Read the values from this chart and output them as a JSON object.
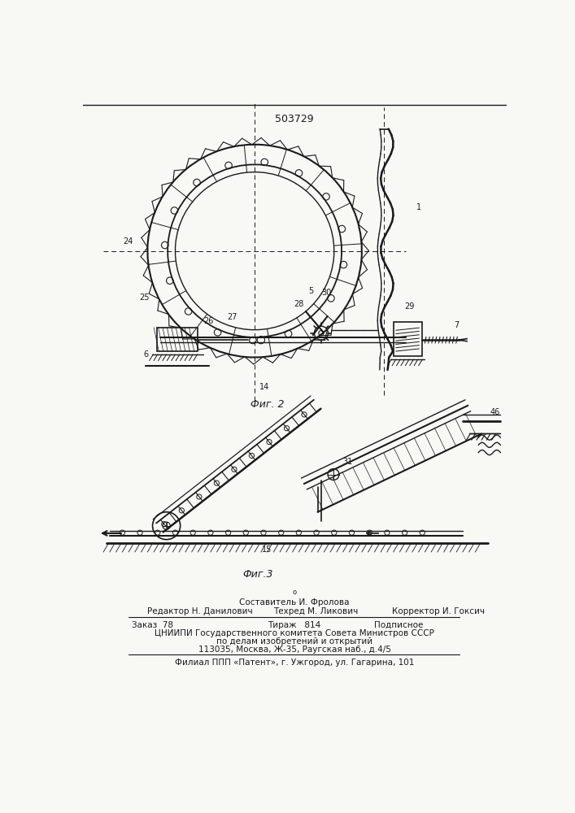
{
  "patent_number": "503729",
  "fig2_label": "Фиг. 2",
  "fig3_label": "Фиг.3",
  "bg_color": "#f8f8f5",
  "line_color": "#1a1a1a",
  "footer_line1_center": "Составитель И. Фролова",
  "footer_line2_left": "Редактор Н. Данилович",
  "footer_line2_center": "Техред М. Ликович",
  "footer_line2_right": "Корректор И. Гоксич",
  "footer_line3_left": "Заказ  78",
  "footer_line3_center": "Тираж   814",
  "footer_line3_right": "Подписное",
  "footer_line4": "ЦНИИПИ Государственного комитета Совета Министров СССР",
  "footer_line5": "по делам изобретений и открытий",
  "footer_line6": "113035, Москва, Ж-35, Раугская наб., д.4/5",
  "footer_line7": "Филиал ППП «Патент», г. Ужгород, ул. Гагарина, 101",
  "small_dot": "о"
}
